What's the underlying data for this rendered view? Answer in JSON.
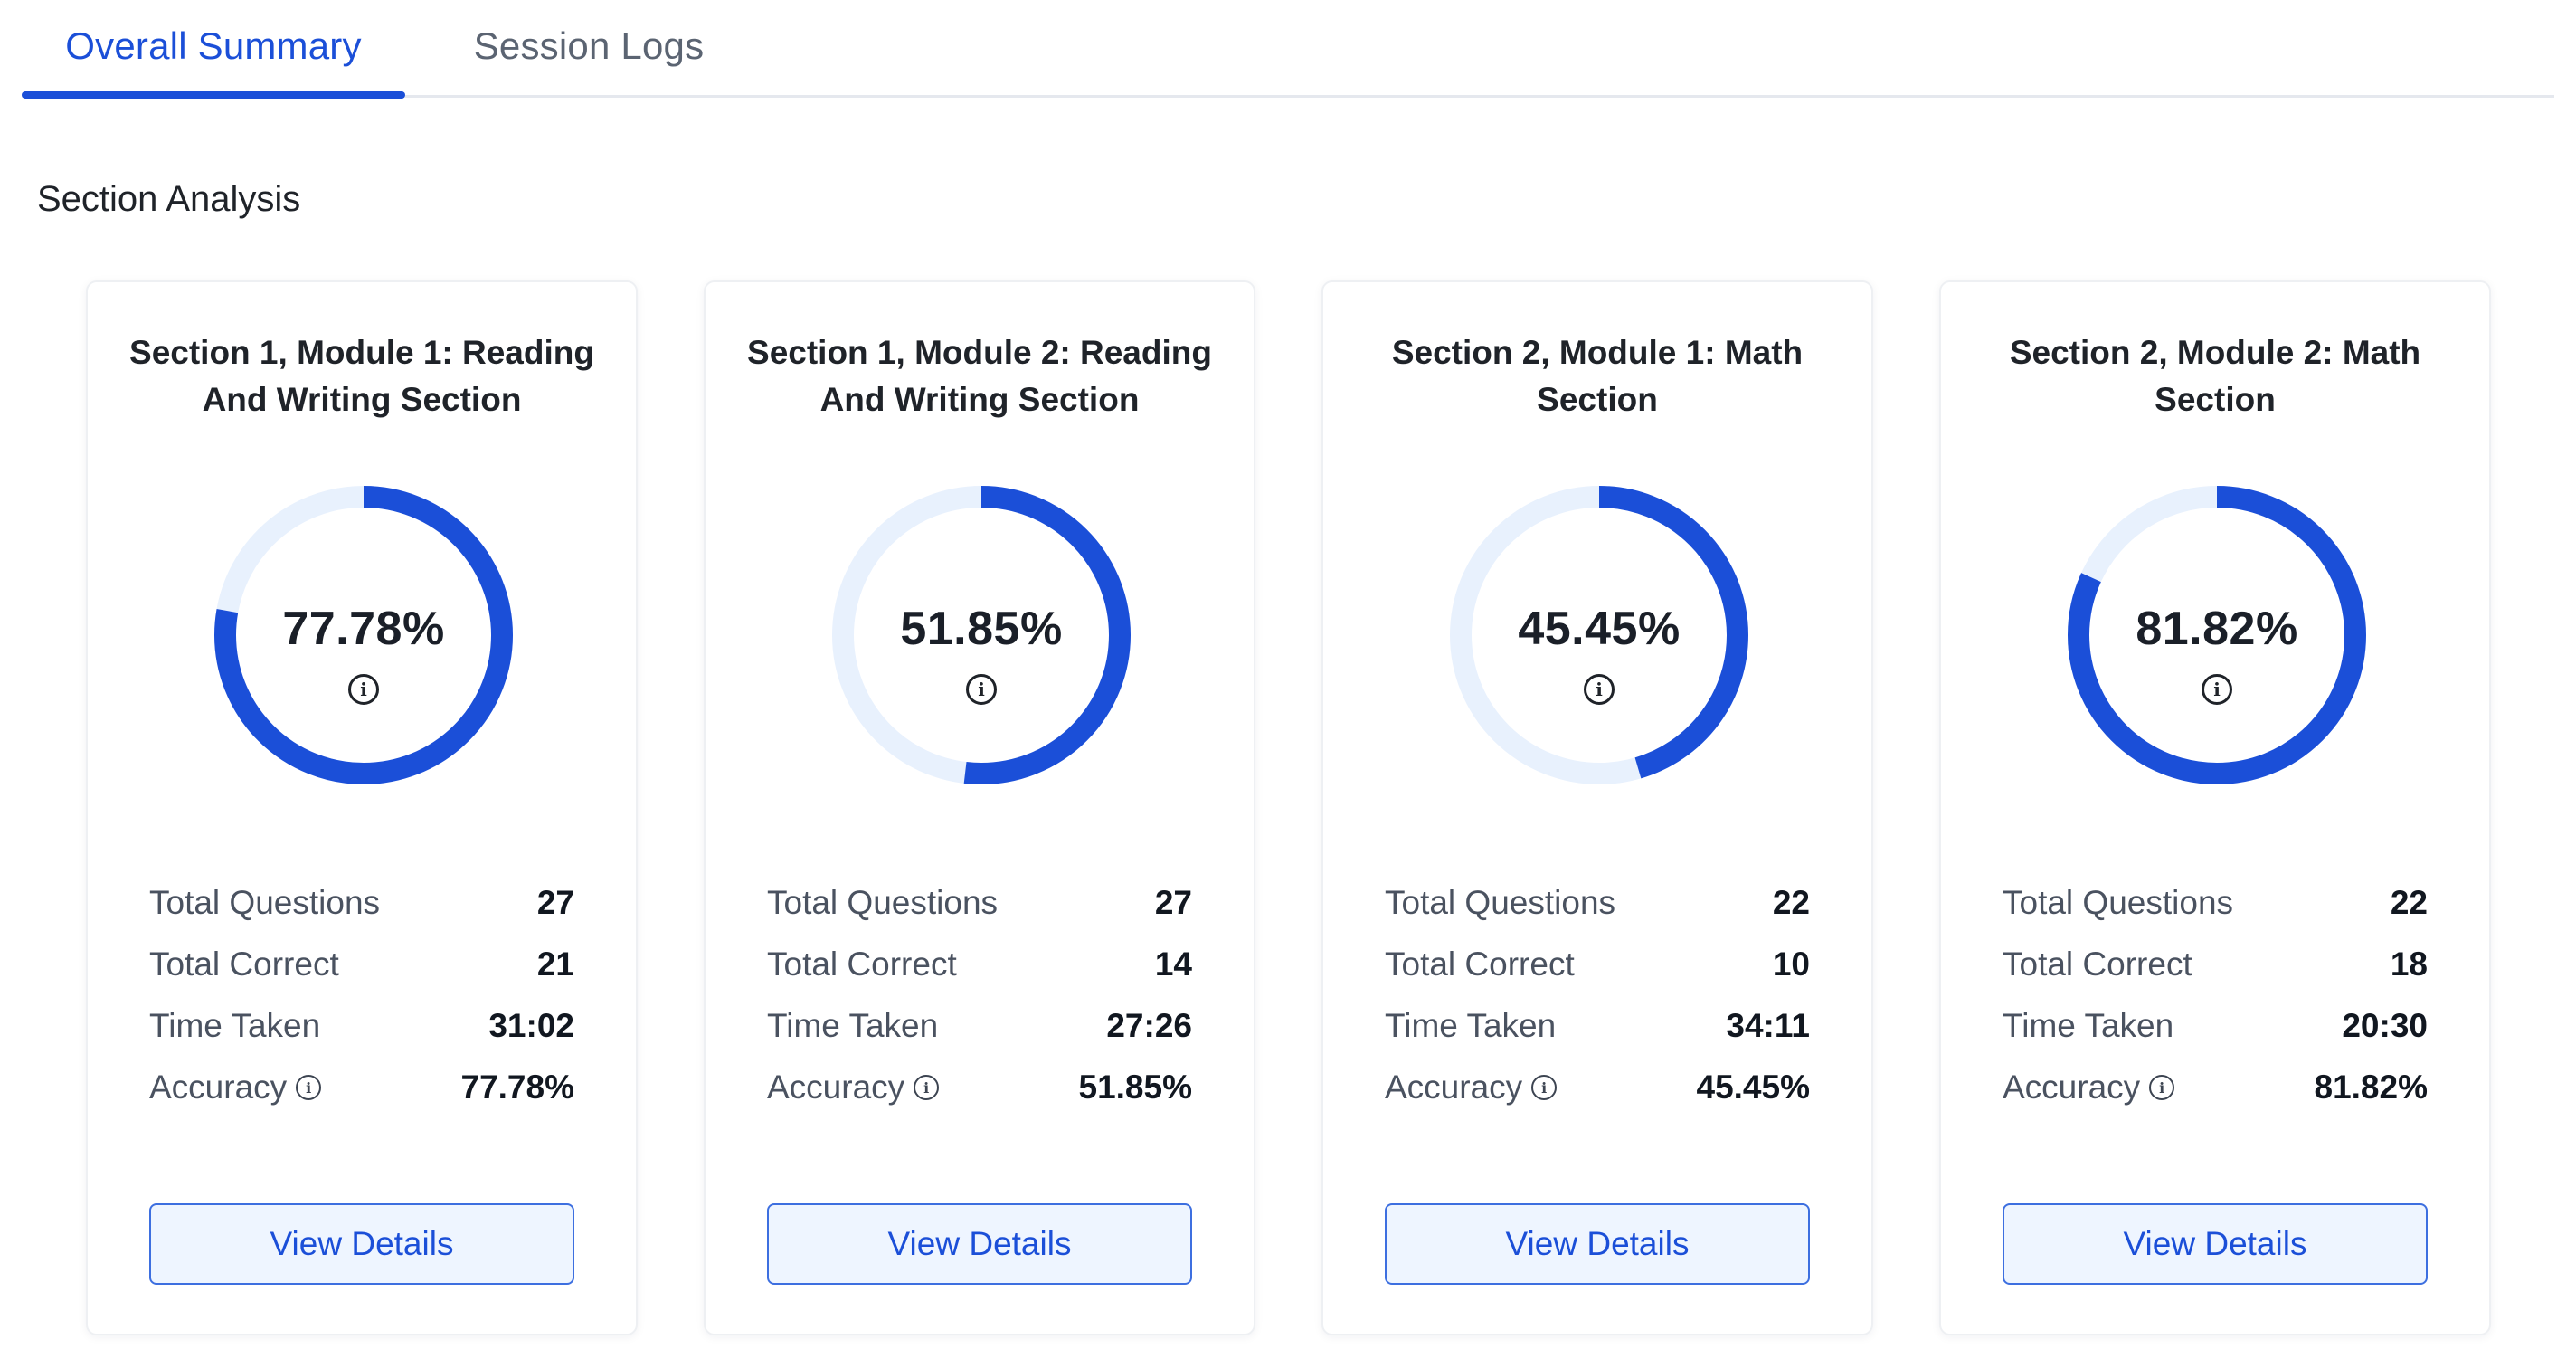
{
  "tabs": [
    {
      "label": "Overall Summary",
      "active": true
    },
    {
      "label": "Session Logs",
      "active": false
    }
  ],
  "section_title": "Section Analysis",
  "colors": {
    "accent": "#1b4fd8",
    "track": "#e8f1fd",
    "button_bg": "#eef5ff"
  },
  "cards": [
    {
      "title": "Section 1, Module 1: Reading And Writing Section",
      "score": "77.78%",
      "score_fraction": 0.7778,
      "total_questions_label": "Total Questions",
      "total_questions": "27",
      "total_correct_label": "Total Correct",
      "total_correct": "21",
      "time_taken_label": "Time Taken",
      "time_taken": "31:02",
      "accuracy_label": "Accuracy",
      "accuracy": "77.78%",
      "button_label": "View Details"
    },
    {
      "title": "Section 1, Module 2: Reading And Writing Section",
      "score": "51.85%",
      "score_fraction": 0.5185,
      "total_questions_label": "Total Questions",
      "total_questions": "27",
      "total_correct_label": "Total Correct",
      "total_correct": "14",
      "time_taken_label": "Time Taken",
      "time_taken": "27:26",
      "accuracy_label": "Accuracy",
      "accuracy": "51.85%",
      "button_label": "View Details"
    },
    {
      "title": "Section 2, Module 1: Math Section",
      "score": "45.45%",
      "score_fraction": 0.4545,
      "total_questions_label": "Total Questions",
      "total_questions": "22",
      "total_correct_label": "Total Correct",
      "total_correct": "10",
      "time_taken_label": "Time Taken",
      "time_taken": "34:11",
      "accuracy_label": "Accuracy",
      "accuracy": "45.45%",
      "button_label": "View Details"
    },
    {
      "title": "Section 2, Module 2: Math Section",
      "score": "81.82%",
      "score_fraction": 0.8182,
      "total_questions_label": "Total Questions",
      "total_questions": "22",
      "total_correct_label": "Total Correct",
      "total_correct": "18",
      "time_taken_label": "Time Taken",
      "time_taken": "20:30",
      "accuracy_label": "Accuracy",
      "accuracy": "81.82%",
      "button_label": "View Details"
    }
  ]
}
